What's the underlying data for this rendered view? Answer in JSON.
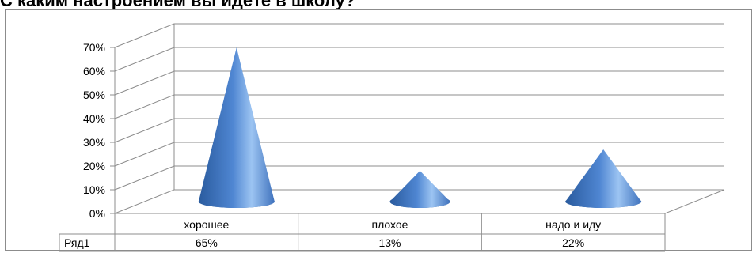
{
  "title": "С каким настроением вы идёте в школу?",
  "chart_data": {
    "type": "bar",
    "style": "3d-cone",
    "title": "С каким настроением вы идёте в школу?",
    "categories": [
      "хорошее",
      "плохое",
      "надо и иду"
    ],
    "series": [
      {
        "name": "Ряд1",
        "values": [
          0.65,
          0.13,
          0.22
        ],
        "labels": [
          "65%",
          "13%",
          "22%"
        ]
      }
    ],
    "ylim": [
      0,
      0.7
    ],
    "yticks": [
      "0%",
      "10%",
      "20%",
      "30%",
      "40%",
      "50%",
      "60%",
      "70%"
    ],
    "grid": true,
    "data_table": true,
    "colors": {
      "cone_dark": "#2a5b9e",
      "cone_mid": "#4f86d2",
      "cone_light": "#9cc4f2",
      "grid": "#8c8c8c",
      "table": "#8c8c8c"
    }
  }
}
